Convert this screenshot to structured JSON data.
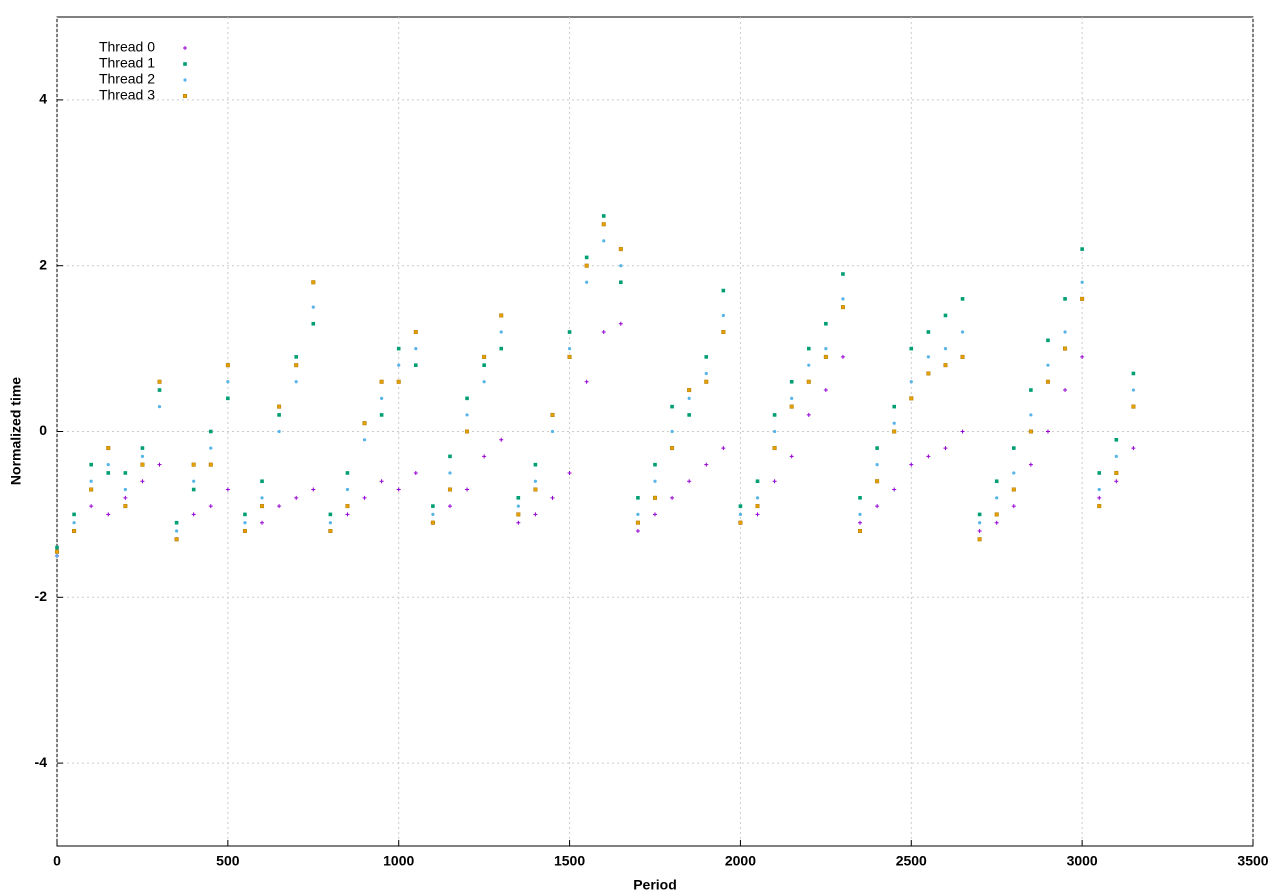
{
  "chart_data": {
    "type": "scatter",
    "x_label": "Period",
    "y_label": "Normalized time",
    "x": [
      0,
      50,
      100,
      150,
      200,
      250,
      300,
      350,
      400,
      450,
      500,
      550,
      600,
      650,
      700,
      750,
      800,
      850,
      900,
      950,
      1000,
      1050,
      1100,
      1150,
      1200,
      1250,
      1300,
      1350,
      1400,
      1450,
      1500,
      1550,
      1600,
      1650,
      1700,
      1750,
      1800,
      1850,
      1900,
      1950,
      2000,
      2050,
      2100,
      2150,
      2200,
      2250,
      2300,
      2350,
      2400,
      2450,
      2500,
      2550,
      2600,
      2650,
      2700,
      2750,
      2800,
      2850,
      2900,
      2950,
      3000,
      3050,
      3100,
      3150
    ],
    "series": [
      {
        "name": "Thread 0",
        "color": "#9400d3",
        "marker": "plus",
        "values": [
          -1.5,
          -1.2,
          -0.9,
          -1.0,
          -0.8,
          -0.6,
          -0.4,
          -1.3,
          -1.0,
          -0.9,
          -0.7,
          -1.2,
          -1.1,
          -0.9,
          -0.8,
          -0.7,
          -1.2,
          -1.0,
          -0.8,
          -0.6,
          -0.7,
          -0.5,
          -1.1,
          -0.9,
          -0.7,
          -0.3,
          -0.1,
          -1.1,
          -1.0,
          -0.8,
          -0.5,
          0.6,
          1.2,
          1.3,
          -1.2,
          -1.0,
          -0.8,
          -0.6,
          -0.4,
          -0.2,
          -1.1,
          -1.0,
          -0.6,
          -0.3,
          0.2,
          0.5,
          0.9,
          -1.1,
          -0.9,
          -0.7,
          -0.4,
          -0.3,
          -0.2,
          0.0,
          -1.2,
          -1.1,
          -0.9,
          -0.4,
          0.0,
          0.5,
          0.9,
          -0.8,
          -0.6,
          -0.2
        ]
      },
      {
        "name": "Thread 1",
        "color": "#009e73",
        "marker": "square",
        "values": [
          -1.4,
          -1.0,
          -0.4,
          -0.5,
          -0.5,
          -0.2,
          0.5,
          -1.1,
          -0.7,
          0.0,
          0.4,
          -1.0,
          -0.6,
          0.2,
          0.9,
          1.3,
          -1.0,
          -0.5,
          0.1,
          0.2,
          1.0,
          0.8,
          -0.9,
          -0.3,
          0.4,
          0.8,
          1.0,
          -0.8,
          -0.4,
          0.2,
          1.2,
          2.1,
          2.6,
          1.8,
          -0.8,
          -0.4,
          0.3,
          0.2,
          0.9,
          1.7,
          -0.9,
          -0.6,
          0.2,
          0.6,
          1.0,
          1.3,
          1.9,
          -0.8,
          -0.2,
          0.3,
          1.0,
          1.2,
          1.4,
          1.6,
          -1.0,
          -0.6,
          -0.2,
          0.5,
          1.1,
          1.6,
          2.2,
          -0.5,
          -0.1,
          0.7
        ]
      },
      {
        "name": "Thread 2",
        "color": "#56b4e9",
        "marker": "circle",
        "values": [
          -1.5,
          -1.1,
          -0.6,
          -0.4,
          -0.7,
          -0.3,
          0.3,
          -1.2,
          -0.6,
          -0.2,
          0.6,
          -1.1,
          -0.8,
          0.0,
          0.6,
          1.5,
          -1.1,
          -0.7,
          -0.1,
          0.4,
          0.8,
          1.0,
          -1.0,
          -0.5,
          0.2,
          0.6,
          1.2,
          -0.9,
          -0.6,
          0.0,
          1.0,
          1.8,
          2.3,
          2.0,
          -1.0,
          -0.6,
          0.0,
          0.4,
          0.7,
          1.4,
          -1.0,
          -0.8,
          0.0,
          0.4,
          0.8,
          1.0,
          1.6,
          -1.0,
          -0.4,
          0.1,
          0.6,
          0.9,
          1.0,
          1.2,
          -1.1,
          -0.8,
          -0.5,
          0.2,
          0.8,
          1.2,
          1.8,
          -0.7,
          -0.3,
          0.5
        ]
      },
      {
        "name": "Thread 3",
        "color": "#e69f00",
        "marker": "square",
        "values": [
          -1.45,
          -1.2,
          -0.7,
          -0.2,
          -0.9,
          -0.4,
          0.6,
          -1.3,
          -0.4,
          -0.4,
          0.8,
          -1.2,
          -0.9,
          0.3,
          0.8,
          1.8,
          -1.2,
          -0.9,
          0.1,
          0.6,
          0.6,
          1.2,
          -1.1,
          -0.7,
          0.0,
          0.9,
          1.4,
          -1.0,
          -0.7,
          0.2,
          0.9,
          2.0,
          2.5,
          2.2,
          -1.1,
          -0.8,
          -0.2,
          0.5,
          0.6,
          1.2,
          -1.1,
          -0.9,
          -0.2,
          0.3,
          0.6,
          0.9,
          1.5,
          -1.2,
          -0.6,
          0.0,
          0.4,
          0.7,
          0.8,
          0.9,
          -1.3,
          -1.0,
          -0.7,
          0.0,
          0.6,
          1.0,
          1.6,
          -0.9,
          -0.5,
          0.3
        ]
      }
    ],
    "xlim": [
      0,
      3500
    ],
    "xticks": [
      0,
      500,
      1000,
      1500,
      2000,
      2500,
      3000,
      3500
    ],
    "ylim": [
      -5,
      5
    ],
    "yticks": [
      -4,
      -2,
      0,
      2,
      4
    ],
    "grid": true,
    "legend": "top-left"
  }
}
